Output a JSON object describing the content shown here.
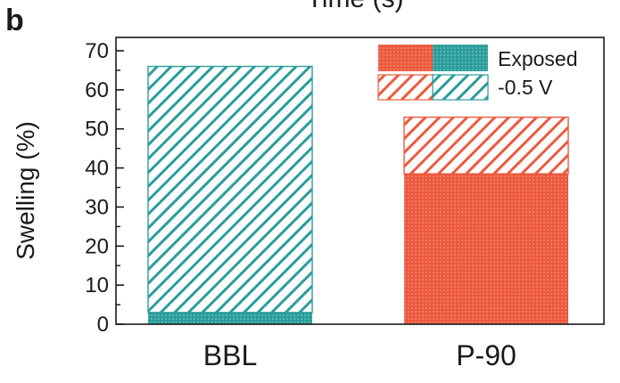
{
  "panel_label": "b",
  "top_cut_label": "Time (s)",
  "colors": {
    "bbl": "#2a9d9b",
    "p90": "#ec5a3e",
    "axis": "#1a1a1a"
  },
  "chart_data": {
    "type": "bar",
    "stacked": true,
    "title": "",
    "xlabel": "",
    "ylabel": "Swelling (%)",
    "ylim": [
      0,
      75
    ],
    "yticks": [
      0,
      10,
      20,
      30,
      40,
      50,
      60,
      70
    ],
    "categories": [
      "BBL",
      "P-90"
    ],
    "series": [
      {
        "name": "Exposed",
        "pattern": "dotted",
        "values": [
          3,
          38.5
        ]
      },
      {
        "name": "-0.5 V",
        "pattern": "hatched",
        "values": [
          63,
          14.5
        ]
      }
    ],
    "legend": {
      "position": "top-right",
      "entries": [
        "Exposed",
        "-0.5 V"
      ]
    }
  }
}
